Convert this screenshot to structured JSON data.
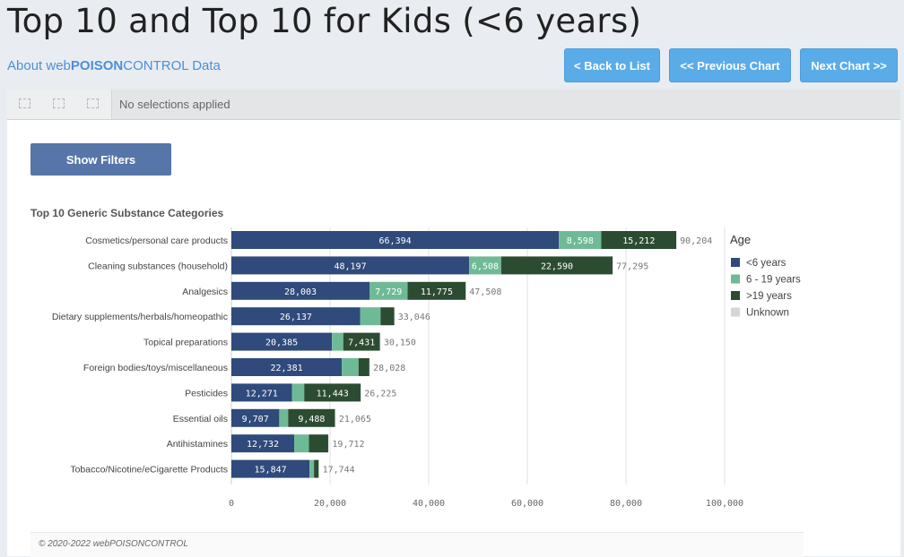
{
  "header": {
    "title": "Top 10 and Top 10 for Kids (<6 years)",
    "about_prefix": "About web",
    "about_brand": "POISON",
    "about_suffix": "CONTROL Data"
  },
  "nav": {
    "back": "< Back to List",
    "previous": "<< Previous Chart",
    "next": "Next Chart >>"
  },
  "selections": {
    "status": "No selections applied"
  },
  "filters_button": "Show Filters",
  "footer": "© 2020-2022 webPOISONCONTROL",
  "colors": {
    "under6": "#2f4a7b",
    "age6to19": "#6fba96",
    "over19": "#2c4c32",
    "unknown": "#d6d6d6"
  },
  "chart_data": {
    "type": "bar",
    "orientation": "horizontal",
    "stacked": true,
    "title": "Top 10 Generic Substance Categories",
    "categories": [
      "Cosmetics/personal care products",
      "Cleaning substances (household)",
      "Analgesics",
      "Dietary supplements/herbals/homeopathic",
      "Topical preparations",
      "Foreign bodies/toys/miscellaneous",
      "Pesticides",
      "Essential oils",
      "Antihistamines",
      "Tobacco/Nicotine/eCigarette Products"
    ],
    "series": [
      {
        "name": "<6 years",
        "color": "#2f4a7b",
        "values": [
          66394,
          48197,
          28003,
          26137,
          20385,
          22381,
          12271,
          9707,
          12732,
          15847
        ]
      },
      {
        "name": "6 - 19 years",
        "color": "#6fba96",
        "values": [
          8598,
          6508,
          7729,
          4100,
          2300,
          3400,
          2500,
          1800,
          3000,
          900
        ]
      },
      {
        "name": ">19 years",
        "color": "#2c4c32",
        "values": [
          15212,
          22590,
          11775,
          2800,
          7431,
          2200,
          11443,
          9488,
          3900,
          950
        ]
      },
      {
        "name": "Unknown",
        "color": "#d6d6d6",
        "values": [
          0,
          0,
          0,
          9,
          34,
          47,
          11,
          70,
          80,
          47
        ]
      }
    ],
    "shown_labels": [
      [
        "66,394",
        "8,598",
        "15,212",
        null
      ],
      [
        "48,197",
        "6,508",
        "22,590",
        null
      ],
      [
        "28,003",
        "7,729",
        "11,775",
        null
      ],
      [
        "26,137",
        null,
        null,
        null
      ],
      [
        "20,385",
        null,
        "7,431",
        null
      ],
      [
        "22,381",
        null,
        null,
        null
      ],
      [
        "12,271",
        null,
        "11,443",
        null
      ],
      [
        "9,707",
        null,
        "9,488",
        null
      ],
      [
        "12,732",
        null,
        null,
        null
      ],
      [
        "15,847",
        null,
        null,
        null
      ]
    ],
    "totals": [
      "90,204",
      "77,295",
      "47,508",
      "33,046",
      "30,150",
      "28,028",
      "26,225",
      "21,065",
      "19,712",
      "17,744"
    ],
    "total_values": [
      90204,
      77295,
      47508,
      33046,
      30150,
      28028,
      26225,
      21065,
      19712,
      17744
    ],
    "xlim": [
      0,
      100000
    ],
    "xticks": [
      0,
      20000,
      40000,
      60000,
      80000,
      100000
    ],
    "xtick_labels": [
      "0",
      "20,000",
      "40,000",
      "60,000",
      "80,000",
      "100,000"
    ],
    "legend": {
      "title": "Age",
      "position": "right"
    },
    "grid": true
  }
}
